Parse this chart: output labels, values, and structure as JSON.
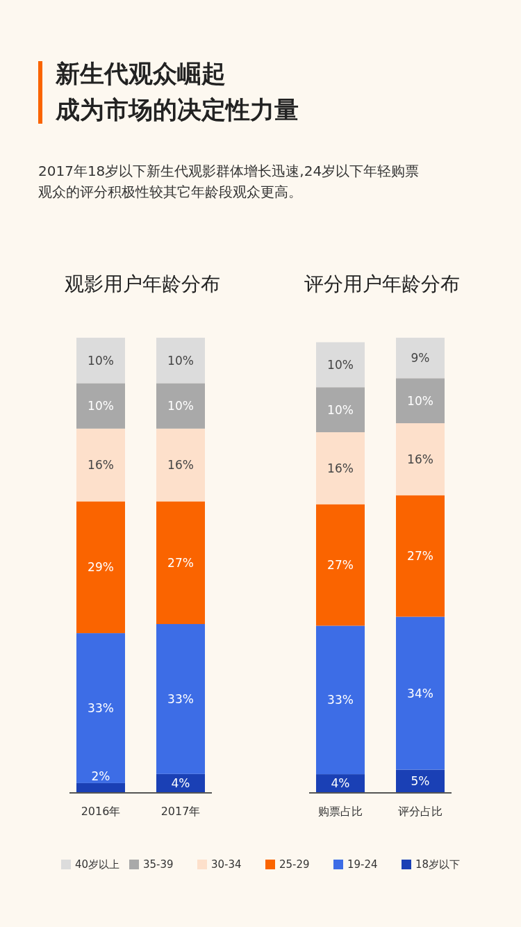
{
  "chart_data": [
    {
      "type": "other",
      "title": "新生代观众崛起成为市场的决定性力量",
      "subtitle": "2017年18岁以下新生代观影群体增长迅速,24岁以下年轻购票观众的评分积极性较其它年龄段观众更高。"
    },
    {
      "type": "bar",
      "title": "观影用户年龄分布",
      "categories": [
        "2016年",
        "2017年"
      ],
      "stacked": true,
      "legend": "bottom",
      "series": [
        {
          "name": "18岁以下",
          "color": "#1a40b5",
          "values": [
            2,
            4
          ],
          "value_labels": [
            "2%",
            "4%"
          ]
        },
        {
          "name": "19-24",
          "color": "#3d6de6",
          "values": [
            33,
            33
          ],
          "value_labels": [
            "33%",
            "33%"
          ]
        },
        {
          "name": "25-29",
          "color": "#fa6400",
          "values": [
            29,
            27
          ],
          "value_labels": [
            "29%",
            "27%"
          ]
        },
        {
          "name": "30-34",
          "color": "#fde0cb",
          "values": [
            16,
            16
          ],
          "value_labels": [
            "16%",
            "16%"
          ]
        },
        {
          "name": "35-39",
          "color": "#a9a9a9",
          "values": [
            10,
            10
          ],
          "value_labels": [
            "10%",
            "10%"
          ]
        },
        {
          "name": "40岁以上",
          "color": "#dcdcdc",
          "values": [
            10,
            10
          ],
          "value_labels": [
            "10%",
            "10%"
          ]
        }
      ]
    },
    {
      "type": "bar",
      "title": "评分用户年龄分布",
      "categories": [
        "购票占比",
        "评分占比"
      ],
      "stacked": true,
      "series": [
        {
          "color": "#1a40b5",
          "values": [
            4,
            5
          ],
          "value_labels": [
            "4%",
            "5%"
          ]
        },
        {
          "color": "#3d6de6",
          "values": [
            33,
            34
          ],
          "value_labels": [
            "33%",
            "34%"
          ]
        },
        {
          "color": "#fa6400",
          "values": [
            27,
            27
          ],
          "value_labels": [
            "27%",
            "27%"
          ]
        },
        {
          "color": "#fde0cb",
          "values": [
            16,
            16
          ],
          "value_labels": [
            "16%",
            "16%"
          ]
        },
        {
          "color": "#a9a9a9",
          "values": [
            10,
            10
          ],
          "value_labels": [
            "10%",
            "10%"
          ]
        },
        {
          "color": "#dcdcdc",
          "values": [
            10,
            9
          ],
          "value_labels": [
            "10%",
            "9%"
          ]
        }
      ]
    }
  ]
}
